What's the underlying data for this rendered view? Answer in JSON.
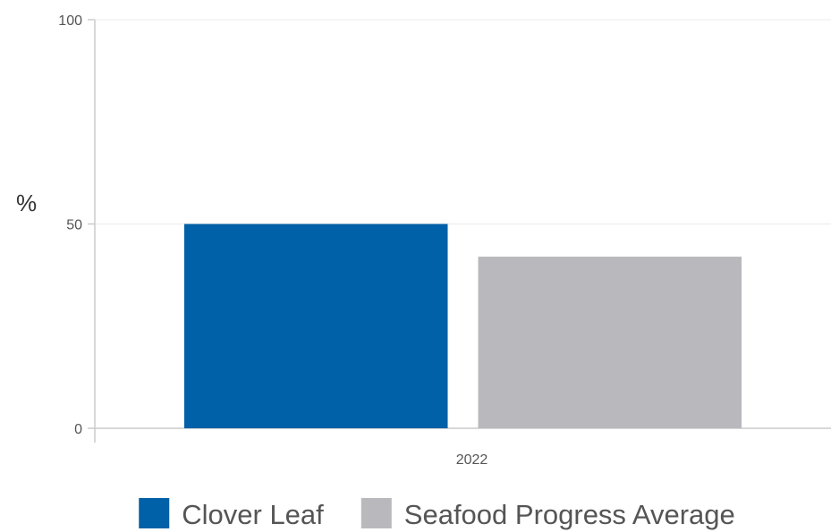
{
  "chart_data": {
    "type": "bar",
    "categories": [
      "2022"
    ],
    "series": [
      {
        "name": "Clover Leaf",
        "values": [
          50
        ],
        "color": "#0060A8"
      },
      {
        "name": "Seafood Progress Average",
        "values": [
          42
        ],
        "color": "#B9B8BD"
      }
    ],
    "title": "",
    "xlabel": "",
    "ylabel": "%",
    "ylim": [
      0,
      100
    ],
    "yticks": [
      "0",
      "50",
      "100"
    ],
    "grid": true,
    "legend_position": "bottom"
  }
}
